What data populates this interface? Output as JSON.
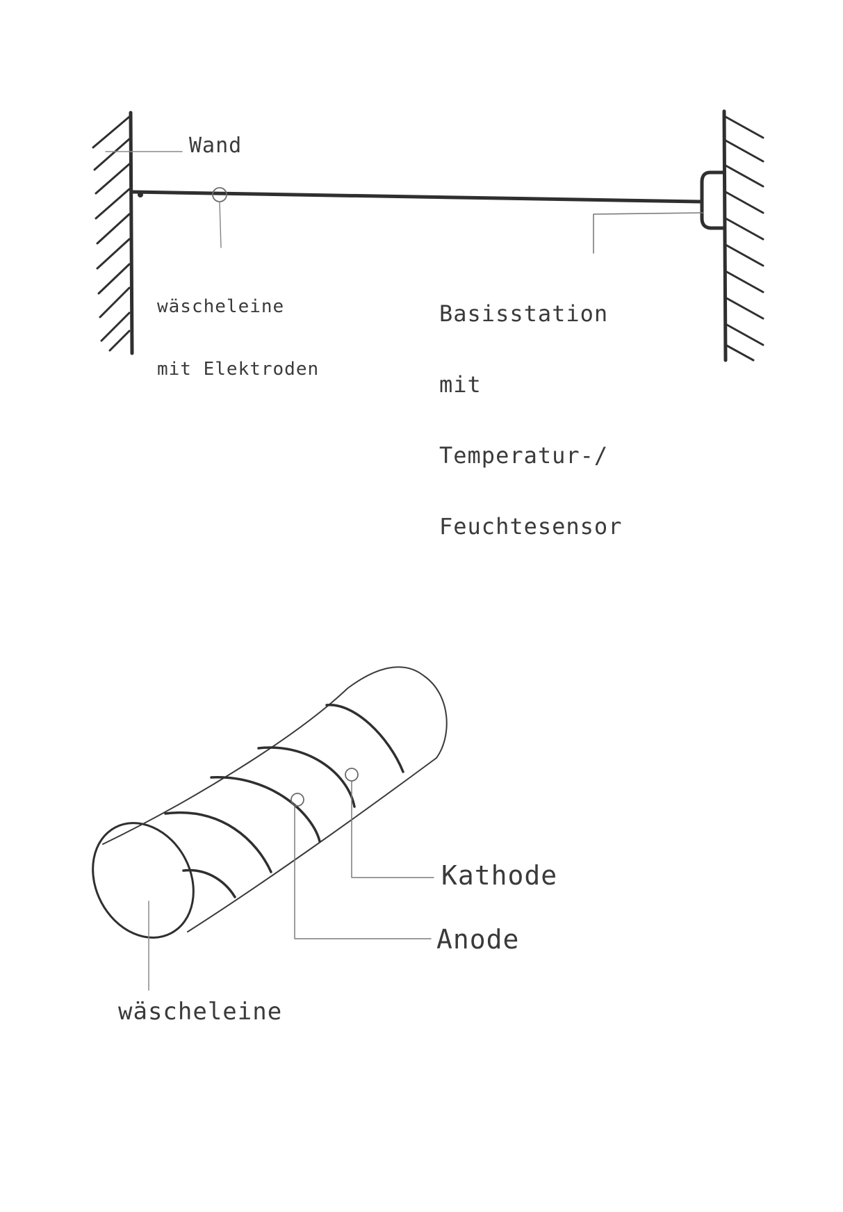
{
  "top_diagram": {
    "wall_label": "Wand",
    "line_label_1": "wäscheleine",
    "line_label_2": "mit Elektroden",
    "base_label_1": "Basisstation",
    "base_label_2": "mit",
    "base_label_3": "Temperatur-/",
    "base_label_4": "Feuchtesensor"
  },
  "bottom_diagram": {
    "cathode_label": "Kathode",
    "anode_label": "Anode",
    "line_label": "wäscheleine"
  },
  "colors": {
    "ink": "#2f2f2f",
    "ink_light": "#8a8a8a",
    "paper": "#ffffff"
  }
}
